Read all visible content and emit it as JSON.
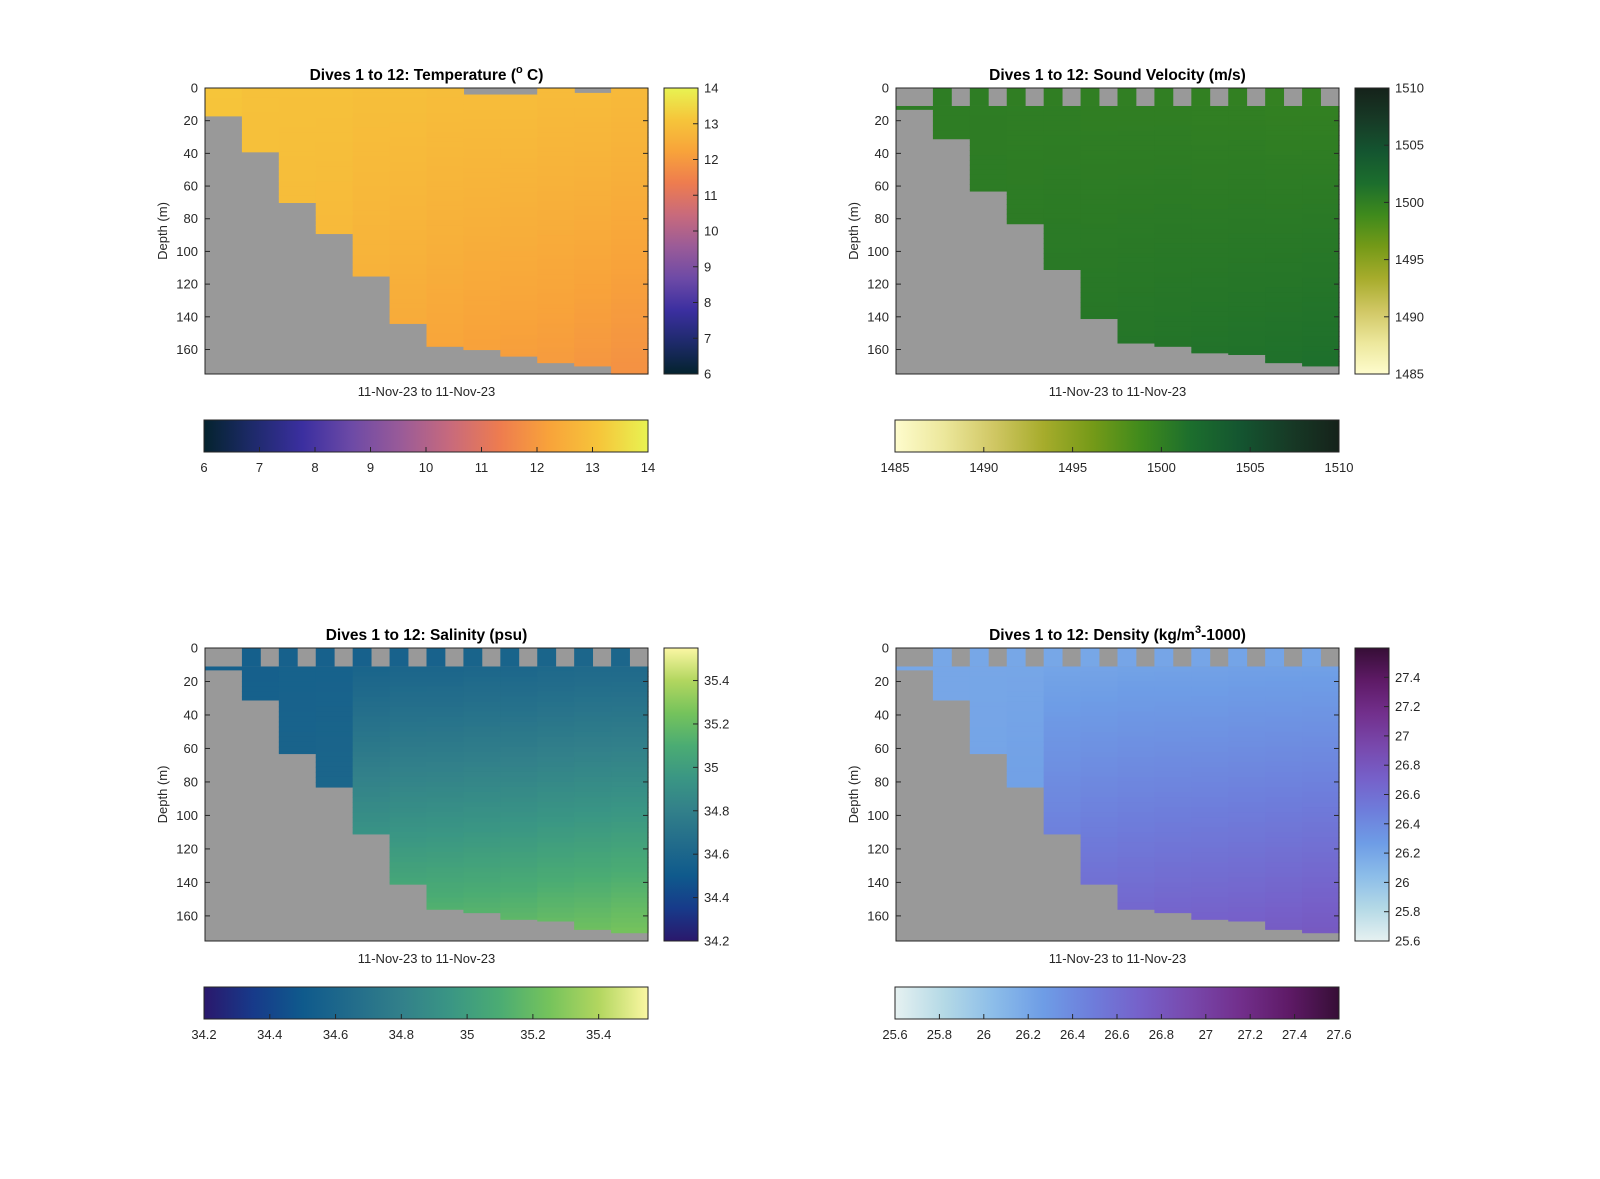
{
  "chart_data": [
    {
      "type": "heatmap",
      "title": "Dives 1 to 12: Temperature (° C)",
      "title_parts": {
        "pre": "Dives 1 to 12: Temperature (",
        "sup": "o",
        "post": " C)"
      },
      "xlabel": "11-Nov-23 to 11-Nov-23",
      "ylabel": "Depth (m)",
      "ylim": [
        0,
        175
      ],
      "yticks": [
        0,
        20,
        40,
        60,
        80,
        100,
        120,
        140,
        160
      ],
      "colormap": "thermal",
      "colormap_stops": [
        "#04232e",
        "#1e2a6b",
        "#3b2fa0",
        "#6d4aa6",
        "#9a5b98",
        "#c86a7c",
        "#ee7c4f",
        "#f8a33a",
        "#f6c53a",
        "#e8f352"
      ],
      "clim": [
        6,
        14
      ],
      "right_colorbar_ticks": [
        "6",
        "7",
        "8",
        "9",
        "10",
        "11",
        "12",
        "13",
        "14"
      ],
      "bottom_colorbar_ticks": [
        "6",
        "7",
        "8",
        "9",
        "10",
        "11",
        "12",
        "13",
        "14"
      ],
      "surface_values": [
        13.1,
        13.0,
        13.0,
        13.0,
        12.95,
        12.95,
        12.9,
        12.9,
        12.9,
        12.85,
        12.85,
        12.8
      ],
      "bottom_values": [
        13.0,
        12.9,
        12.7,
        12.6,
        12.4,
        12.3,
        12.2,
        12.1,
        12.05,
        12.0,
        11.9,
        11.8
      ],
      "dive_max_depth": [
        17,
        39,
        70,
        89,
        115,
        144,
        158,
        160,
        164,
        168,
        170,
        175
      ],
      "surface_gap_depth": [
        0,
        0,
        0,
        0,
        0,
        0,
        0,
        0,
        0,
        0,
        0,
        0
      ],
      "surface_gap_partial": [
        0,
        0,
        0,
        0,
        0,
        0,
        0,
        4,
        4,
        0,
        3,
        0
      ]
    },
    {
      "type": "heatmap",
      "title": "Dives 1 to 12: Sound Velocity (m/s)",
      "xlabel": "11-Nov-23 to 11-Nov-23",
      "ylabel": "Depth (m)",
      "ylim": [
        0,
        175
      ],
      "yticks": [
        0,
        20,
        40,
        60,
        80,
        100,
        120,
        140,
        160
      ],
      "colormap": "speed",
      "colormap_stops": [
        "#fefccd",
        "#ece79b",
        "#d0c764",
        "#a7ac2c",
        "#759a18",
        "#3f8a1c",
        "#1c6e2d",
        "#145530",
        "#173a26",
        "#15221a"
      ],
      "clim": [
        1485,
        1510
      ],
      "right_colorbar_ticks": [
        "1485",
        "1490",
        "1495",
        "1500",
        "1505",
        "1510"
      ],
      "bottom_colorbar_ticks": [
        "1485",
        "1490",
        "1495",
        "1500",
        "1505",
        "1510"
      ],
      "surface_values": [
        1500.3,
        1500.2,
        1500.2,
        1500.1,
        1500.1,
        1500.0,
        1500.0,
        1500.0,
        1499.9,
        1499.9,
        1499.8,
        1499.8
      ],
      "bottom_values": [
        1500.3,
        1500.4,
        1500.6,
        1500.7,
        1500.9,
        1501.0,
        1501.1,
        1501.2,
        1501.3,
        1501.4,
        1501.5,
        1501.6
      ],
      "dive_max_depth": [
        13,
        31,
        63,
        83,
        111,
        141,
        156,
        158,
        162,
        163,
        168,
        170
      ],
      "surface_gap_depth": [
        11,
        11,
        11,
        11,
        11,
        11,
        11,
        11,
        11,
        11,
        11,
        11
      ],
      "surface_gap_partial": [
        0,
        0,
        0,
        0,
        0,
        0,
        0,
        0,
        0,
        0,
        0,
        0
      ]
    },
    {
      "type": "heatmap",
      "title": "Dives 1 to 12: Salinity (psu)",
      "xlabel": "11-Nov-23 to 11-Nov-23",
      "ylabel": "Depth (m)",
      "ylim": [
        0,
        175
      ],
      "yticks": [
        0,
        20,
        40,
        60,
        80,
        100,
        120,
        140,
        160
      ],
      "colormap": "haline",
      "colormap_stops": [
        "#2a186c",
        "#173a8a",
        "#0f5a8c",
        "#226c8b",
        "#32808a",
        "#3a9684",
        "#4bac73",
        "#75c35c",
        "#b2d65f",
        "#fbf7a3"
      ],
      "clim": [
        34.2,
        35.55
      ],
      "right_colorbar_ticks": [
        "34.2",
        "34.4",
        "34.6",
        "34.8",
        "35",
        "35.2",
        "35.4"
      ],
      "bottom_colorbar_ticks": [
        "34.2",
        "34.4",
        "34.6",
        "34.8",
        "35",
        "35.2",
        "35.4"
      ],
      "surface_values": [
        34.55,
        34.55,
        34.56,
        34.56,
        34.56,
        34.57,
        34.57,
        34.58,
        34.58,
        34.59,
        34.6,
        34.6
      ],
      "bottom_values": [
        34.55,
        34.6,
        34.62,
        34.65,
        35.18,
        35.2,
        35.21,
        35.22,
        35.23,
        35.25,
        35.26,
        35.28
      ],
      "dive_max_depth": [
        13,
        31,
        63,
        83,
        111,
        141,
        156,
        158,
        162,
        163,
        168,
        170
      ],
      "surface_gap_depth": [
        11,
        11,
        11,
        11,
        11,
        11,
        11,
        11,
        11,
        11,
        11,
        11
      ],
      "surface_gap_partial": [
        0,
        0,
        0,
        0,
        0,
        0,
        0,
        0,
        0,
        0,
        0,
        0
      ]
    },
    {
      "type": "heatmap",
      "title": "Dives 1 to 12: Density (kg/m³-1000)",
      "title_parts": {
        "pre": "Dives 1 to 12: Density (kg/m",
        "sup": "3",
        "post": "-1000)"
      },
      "xlabel": "11-Nov-23 to 11-Nov-23",
      "ylabel": "Depth (m)",
      "ylim": [
        0,
        175
      ],
      "yticks": [
        0,
        20,
        40,
        60,
        80,
        100,
        120,
        140,
        160
      ],
      "colormap": "dense",
      "colormap_stops": [
        "#e6f1f1",
        "#b4d9e6",
        "#8cbde9",
        "#6e9de6",
        "#6e7ddb",
        "#7660c9",
        "#7848ac",
        "#722f8c",
        "#5e1a66",
        "#360e36"
      ],
      "clim": [
        25.6,
        27.6
      ],
      "right_colorbar_ticks": [
        "25.6",
        "25.8",
        "26",
        "26.2",
        "26.4",
        "26.6",
        "26.8",
        "27",
        "27.2",
        "27.4"
      ],
      "bottom_colorbar_ticks": [
        "25.6",
        "25.8",
        "26",
        "26.2",
        "26.4",
        "26.6",
        "26.8",
        "27",
        "27.2",
        "27.4",
        "27.6"
      ],
      "surface_values": [
        26.2,
        26.2,
        26.2,
        26.2,
        26.2,
        26.2,
        26.21,
        26.21,
        26.21,
        26.22,
        26.22,
        26.22
      ],
      "bottom_values": [
        26.2,
        26.22,
        26.25,
        26.3,
        26.65,
        26.7,
        26.72,
        26.74,
        26.75,
        26.76,
        26.78,
        26.8
      ],
      "dive_max_depth": [
        13,
        31,
        63,
        83,
        111,
        141,
        156,
        158,
        162,
        163,
        168,
        170
      ],
      "surface_gap_depth": [
        11,
        11,
        11,
        11,
        11,
        11,
        11,
        11,
        11,
        11,
        11,
        11
      ],
      "surface_gap_partial": [
        0,
        0,
        0,
        0,
        0,
        0,
        0,
        0,
        0,
        0,
        0,
        0
      ]
    }
  ],
  "colors": {
    "no_data_fill": "#999999",
    "axis_line": "#262626"
  }
}
